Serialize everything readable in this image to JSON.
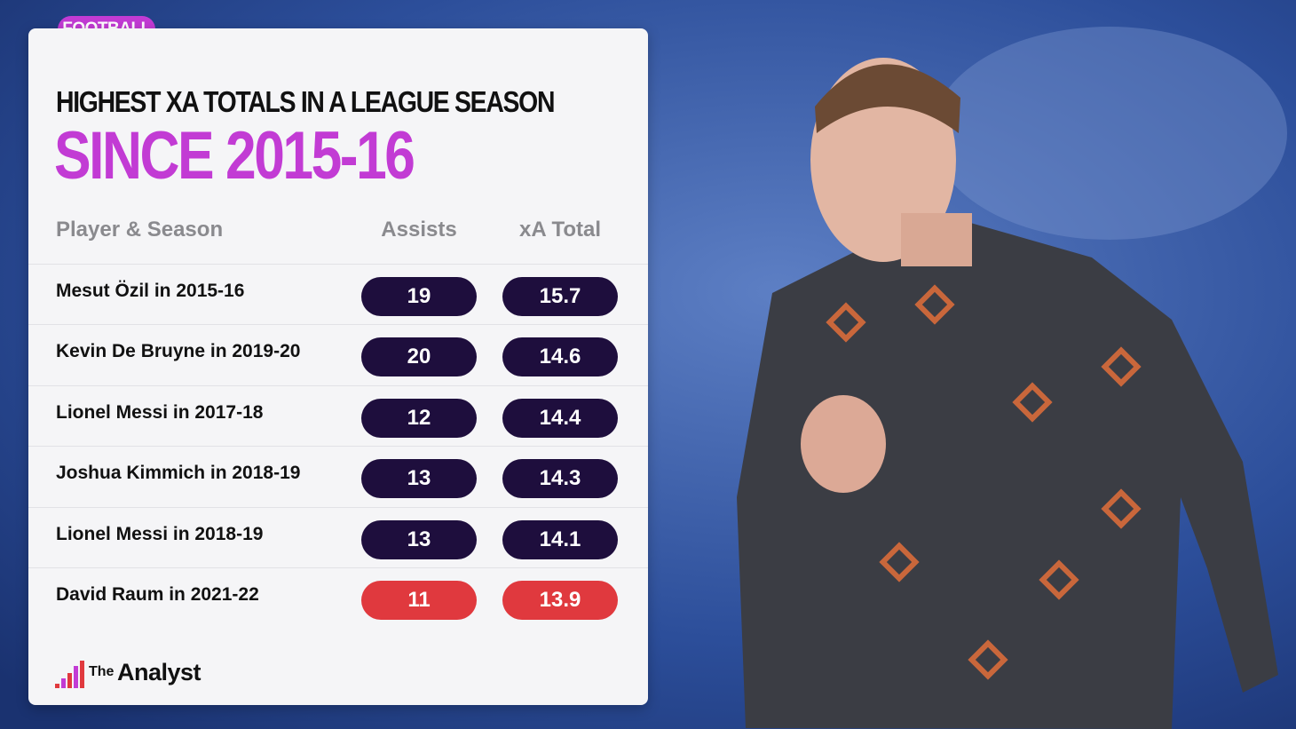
{
  "tag": "FOOTBALL",
  "header": {
    "title": "HIGHEST XA TOTALS IN A LEAGUE SEASON",
    "subtitle": "SINCE 2015-16"
  },
  "table": {
    "columns": [
      "Player & Season",
      "Assists",
      "xA Total"
    ],
    "rows": [
      [
        "Mesut Özil in 2015-16",
        19,
        15.7
      ],
      [
        "Kevin De Bruyne in 2019-20",
        20,
        14.6
      ],
      [
        "Lionel Messi in 2017-18",
        12,
        14.4
      ],
      [
        "Joshua Kimmich in 2018-19",
        13,
        14.3
      ],
      [
        "Lionel Messi in 2018-19",
        13,
        14.1
      ],
      [
        "David Raum in 2021-22",
        11,
        13.9
      ]
    ]
  },
  "logo": {
    "small": "The",
    "big": "Analyst"
  }
}
